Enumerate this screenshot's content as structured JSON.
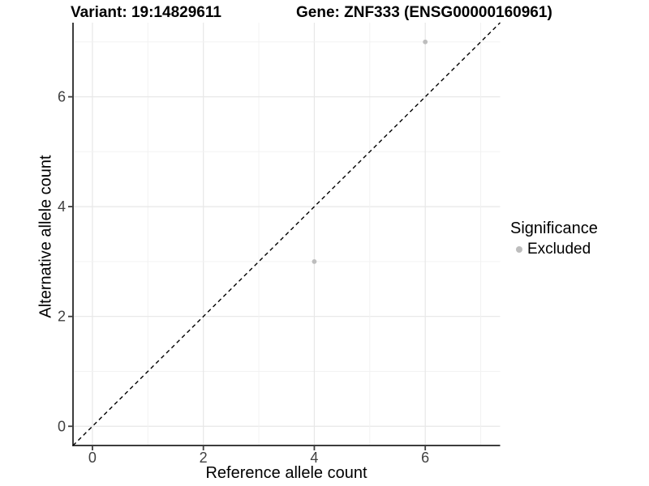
{
  "chart_data": {
    "type": "scatter",
    "title": "Variant: 19:14829611",
    "title2": "Gene: ZNF333 (ENSG00000160961)",
    "xlabel": "Reference allele count",
    "ylabel": "Alternative allele count",
    "xlim": [
      -0.35,
      7.35
    ],
    "ylim": [
      -0.35,
      7.35
    ],
    "xticks": [
      0,
      2,
      4,
      6
    ],
    "yticks": [
      0,
      2,
      4,
      6
    ],
    "gridlines": [
      0,
      1,
      2,
      3,
      4,
      5,
      6,
      7
    ],
    "grid": true,
    "points": [
      {
        "x": 4,
        "y": 3,
        "series": "Excluded"
      },
      {
        "x": 6,
        "y": 7,
        "series": "Excluded"
      }
    ],
    "identity_line": {
      "style": "dashed",
      "slope": 1,
      "intercept": 0
    },
    "legend": {
      "title": "Significance",
      "position": "right",
      "items": [
        {
          "label": "Excluded",
          "color": "#bdbdbd"
        }
      ]
    }
  },
  "colors": {
    "point": "#bdbdbd",
    "grid_major": "#e7e7e7",
    "grid_minor": "#f2f2f2",
    "axis_line": "#3d3d3d",
    "tick_mark": "#3d3d3d",
    "identity_line": "#000000",
    "background": "#ffffff"
  }
}
